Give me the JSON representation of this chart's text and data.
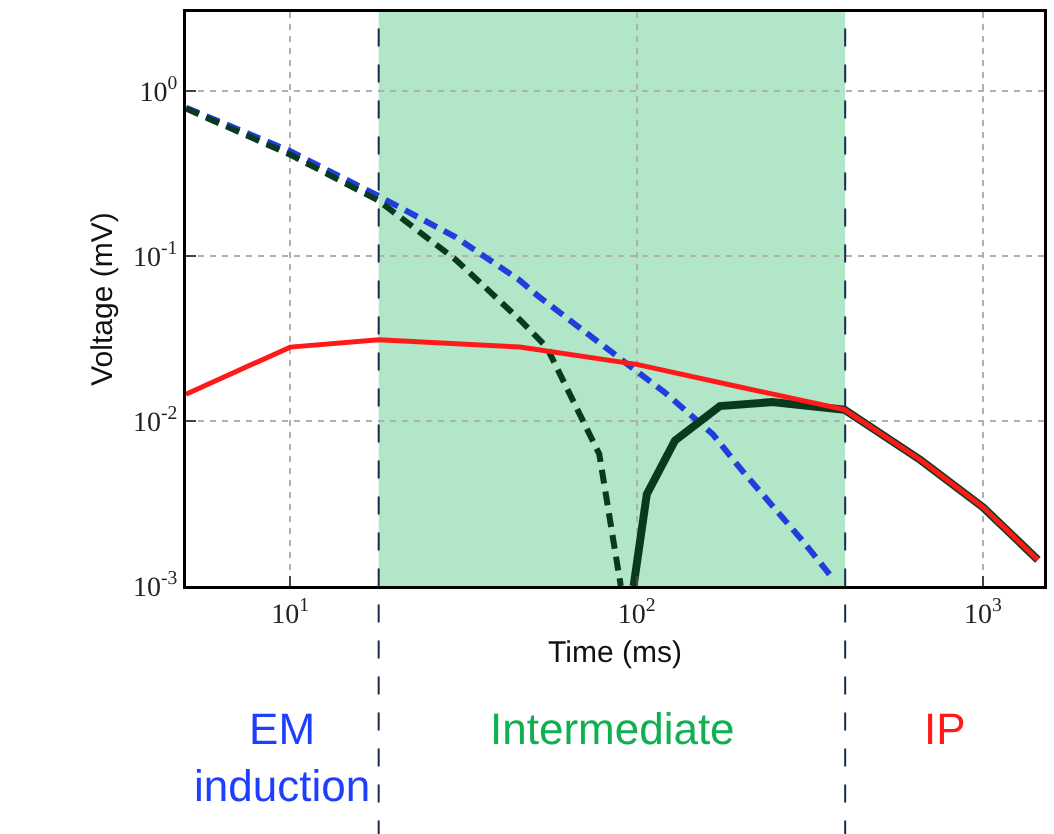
{
  "chart_data": {
    "type": "line",
    "xlabel": "Time (ms)",
    "ylabel": "Voltage (mV)",
    "log": "xy",
    "grid": true,
    "xlim": [
      5,
      1500
    ],
    "ylim": [
      0.001,
      3
    ],
    "xticks": [
      {
        "value": 10,
        "label": "10$^{1}$"
      },
      {
        "value": 100,
        "label": "10$^{2}$"
      },
      {
        "value": 1000,
        "label": "10$^{3}$"
      }
    ],
    "yticks": [
      {
        "value": 0.001,
        "label": "10$^{-3}$"
      },
      {
        "value": 0.01,
        "label": "10$^{-2}$"
      },
      {
        "value": 0.1,
        "label": "10$^{-1}$"
      },
      {
        "value": 1,
        "label": "10$^{0}$"
      }
    ],
    "series": [
      {
        "color": "#1f3fdd",
        "line_style": "dashed",
        "x": [
          5,
          10,
          18,
          30,
          46,
          52,
          100,
          120,
          166,
          200,
          300,
          370
        ],
        "values": [
          0.79,
          0.43,
          0.23,
          0.13,
          0.071,
          0.057,
          0.02,
          0.015,
          0.0083,
          0.0051,
          0.0019,
          0.0011
        ]
      },
      {
        "color": "#0a3a1e",
        "line_style": "dashed",
        "x": [
          5,
          10,
          18,
          30,
          46,
          55,
          78,
          90
        ],
        "values": [
          0.78,
          0.41,
          0.216,
          0.095,
          0.041,
          0.028,
          0.0063,
          0.001
        ]
      },
      {
        "color": "#0a3a1e",
        "line_style": "solid",
        "x": [
          98,
          107,
          129,
          174,
          246,
          398,
          660,
          1000,
          1440
        ],
        "values": [
          0.001,
          0.0036,
          0.0076,
          0.0123,
          0.013,
          0.0117,
          0.0058,
          0.003,
          0.00144
        ]
      },
      {
        "color": "#ff1a1a",
        "line_style": "solid",
        "x": [
          5,
          10,
          18,
          46,
          100,
          200,
          398,
          660,
          1000,
          1440
        ],
        "values": [
          0.0145,
          0.028,
          0.031,
          0.028,
          0.022,
          0.016,
          0.0117,
          0.0058,
          0.003,
          0.00144
        ]
      }
    ],
    "bands": [
      {
        "axis": "x",
        "from": 18,
        "to": 400,
        "color": "#b2e6c9"
      }
    ],
    "ref_lines": [
      {
        "axis": "x",
        "value": 18,
        "color": "#1a2a4a",
        "line_style": "dashed"
      },
      {
        "axis": "x",
        "value": 400,
        "color": "#1a2a4a",
        "line_style": "dashed"
      }
    ],
    "annotations": [
      "EM induction",
      "Intermediate",
      "IP"
    ]
  }
}
